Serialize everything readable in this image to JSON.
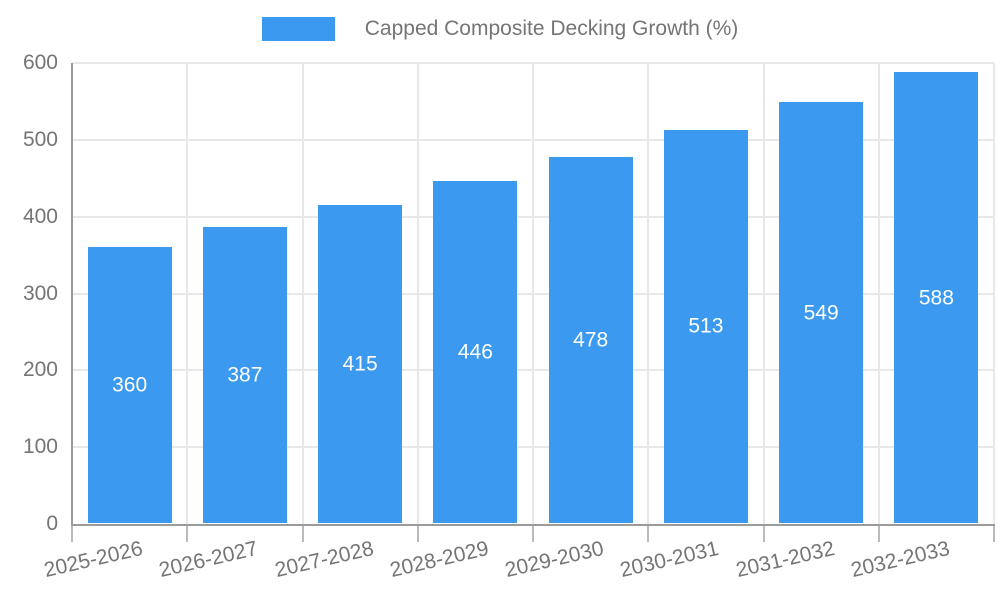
{
  "chart_data": {
    "type": "bar",
    "title": "Capped Composite Decking Growth (%)",
    "legend": [
      "Capped Composite Decking Growth (%)"
    ],
    "legend_position": "top",
    "categories": [
      "2025-2026",
      "2026-2027",
      "2027-2028",
      "2028-2029",
      "2029-2030",
      "2030-2031",
      "2031-2032",
      "2032-2033"
    ],
    "values": [
      360,
      387,
      415,
      446,
      478,
      513,
      549,
      588
    ],
    "xlabel": "",
    "ylabel": "",
    "ylim": [
      0,
      600
    ],
    "ytick_step": 100,
    "yticks": [
      0,
      100,
      200,
      300,
      400,
      500,
      600
    ],
    "grid": true,
    "value_label_position": "inside-center",
    "x_label_rotation_deg": -13,
    "colors": {
      "bar": "#3B9AF0",
      "value_label": "#ffffff",
      "axis_text": "#757575",
      "grid_line": "#e8e8e8",
      "axis_line": "#9b9b9b",
      "tick_line": "#bbbbbb"
    }
  }
}
